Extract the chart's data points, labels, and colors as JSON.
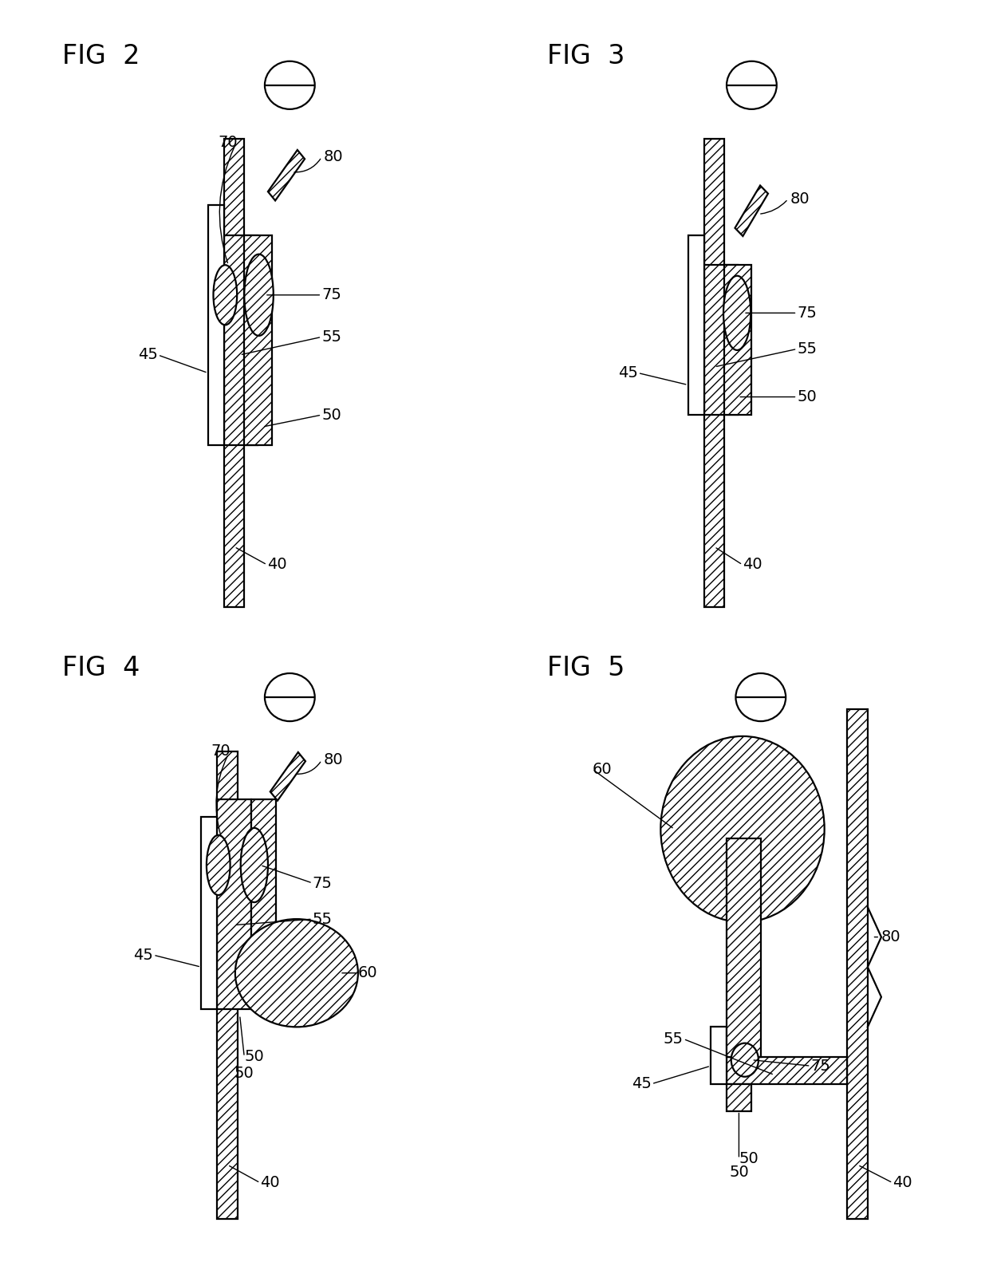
{
  "fig_labels": [
    "FIG  2",
    "FIG  3",
    "FIG  4",
    "FIG  5"
  ],
  "background_color": "#ffffff",
  "lw": 1.6,
  "ref_fontsize": 14,
  "title_fontsize": 24
}
